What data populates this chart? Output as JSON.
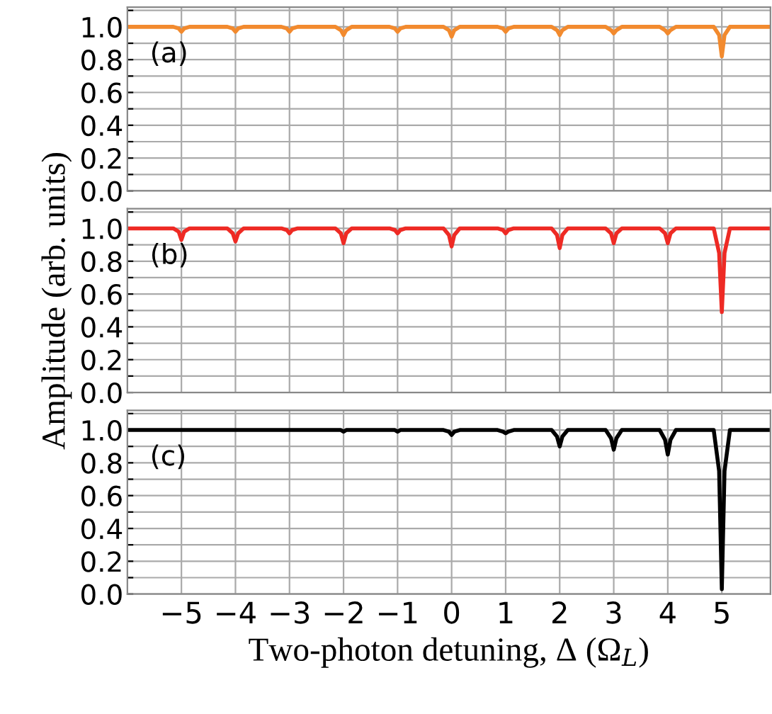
{
  "chart_data": [
    {
      "type": "line",
      "annotations": [
        "(a)"
      ],
      "tick_labels": "y",
      "grid": true,
      "xlim": [
        -6,
        5.9
      ],
      "ylim": [
        0,
        1.12
      ],
      "xticks": [
        {
          "value": -5,
          "label": null
        },
        {
          "value": -4,
          "label": null
        },
        {
          "value": -3,
          "label": null
        },
        {
          "value": -2,
          "label": null
        },
        {
          "value": -1,
          "label": null
        },
        {
          "value": 0,
          "label": null
        },
        {
          "value": 1,
          "label": null
        },
        {
          "value": 2,
          "label": null
        },
        {
          "value": 3,
          "label": null
        },
        {
          "value": 4,
          "label": null
        },
        {
          "value": 5,
          "label": null
        }
      ],
      "yticks": [
        {
          "value": 0,
          "label": "0.0"
        },
        {
          "value": 0.1,
          "label": null
        },
        0.2,
        {
          "value": 0.3,
          "label": null
        },
        0.4,
        {
          "value": 0.5,
          "label": null
        },
        0.6,
        {
          "value": 0.7,
          "label": null
        },
        0.8,
        {
          "value": 0.9,
          "label": null
        },
        {
          "value": 1,
          "label": "1.0"
        },
        {
          "value": 1.1,
          "label": null
        }
      ],
      "x": [
        -6,
        -5.15,
        -5.05,
        -5,
        -4.95,
        -4.85,
        -4.15,
        -4.05,
        -4,
        -3.95,
        -3.85,
        -3.15,
        -3.05,
        -3,
        -2.95,
        -2.85,
        -2.15,
        -2.05,
        -2,
        -1.95,
        -1.85,
        -1.15,
        -1.05,
        -1,
        -0.95,
        -0.85,
        -0.15,
        -0.05,
        0,
        0.05,
        0.15,
        0.85,
        0.95,
        1,
        1.05,
        1.15,
        1.85,
        1.95,
        2,
        2.05,
        2.15,
        2.85,
        2.95,
        3,
        3.05,
        3.15,
        3.85,
        3.95,
        4,
        4.05,
        4.15,
        4.85,
        4.95,
        5,
        5.05,
        5.15,
        5.9
      ],
      "series": [
        {
          "color": "#f28a2e",
          "values": [
            1.0,
            1.0,
            0.99,
            0.97,
            0.99,
            1.0,
            1.0,
            0.99,
            0.97,
            0.99,
            1.0,
            1.0,
            0.99,
            0.97,
            0.99,
            1.0,
            1.0,
            0.98,
            0.95,
            0.98,
            1.0,
            1.0,
            0.99,
            0.97,
            0.99,
            1.0,
            1.0,
            0.98,
            0.94,
            0.98,
            1.0,
            1.0,
            0.99,
            0.97,
            0.99,
            1.0,
            1.0,
            0.98,
            0.95,
            0.98,
            1.0,
            1.0,
            0.98,
            0.96,
            0.98,
            1.0,
            1.0,
            0.98,
            0.96,
            0.98,
            1.0,
            1.0,
            0.95,
            0.82,
            0.95,
            1.0,
            1.0
          ]
        }
      ]
    },
    {
      "type": "line",
      "annotations": [
        "(b)"
      ],
      "ylabel": "Amplitude (arb. units)",
      "tick_labels": "y",
      "grid": true,
      "xlim": [
        -6,
        5.9
      ],
      "ylim": [
        0,
        1.12
      ],
      "xticks": [
        {
          "value": -5,
          "label": null
        },
        {
          "value": -4,
          "label": null
        },
        {
          "value": -3,
          "label": null
        },
        {
          "value": -2,
          "label": null
        },
        {
          "value": -1,
          "label": null
        },
        {
          "value": 0,
          "label": null
        },
        {
          "value": 1,
          "label": null
        },
        {
          "value": 2,
          "label": null
        },
        {
          "value": 3,
          "label": null
        },
        {
          "value": 4,
          "label": null
        },
        {
          "value": 5,
          "label": null
        }
      ],
      "yticks": [
        {
          "value": 0,
          "label": "0.0"
        },
        {
          "value": 0.1,
          "label": null
        },
        0.2,
        {
          "value": 0.3,
          "label": null
        },
        0.4,
        {
          "value": 0.5,
          "label": null
        },
        0.6,
        {
          "value": 0.7,
          "label": null
        },
        0.8,
        {
          "value": 0.9,
          "label": null
        },
        {
          "value": 1,
          "label": "1.0"
        },
        {
          "value": 1.1,
          "label": null
        }
      ],
      "x": [
        -6,
        -5.15,
        -5.05,
        -5,
        -4.95,
        -4.85,
        -4.15,
        -4.05,
        -4,
        -3.95,
        -3.85,
        -3.15,
        -3.05,
        -3,
        -2.95,
        -2.85,
        -2.15,
        -2.05,
        -2,
        -1.95,
        -1.85,
        -1.15,
        -1.05,
        -1,
        -0.95,
        -0.85,
        -0.15,
        -0.05,
        0,
        0.05,
        0.15,
        0.85,
        0.95,
        1,
        1.05,
        1.15,
        1.85,
        1.95,
        2,
        2.05,
        2.15,
        2.85,
        2.95,
        3,
        3.05,
        3.15,
        3.85,
        3.95,
        4,
        4.05,
        4.15,
        4.85,
        4.95,
        5,
        5.05,
        5.15,
        5.9
      ],
      "series": [
        {
          "color": "#ee2a24",
          "values": [
            1.0,
            1.0,
            0.98,
            0.93,
            0.98,
            1.0,
            1.0,
            0.97,
            0.92,
            0.97,
            1.0,
            1.0,
            0.99,
            0.97,
            0.99,
            1.0,
            1.0,
            0.97,
            0.91,
            0.97,
            1.0,
            1.0,
            0.99,
            0.97,
            0.99,
            1.0,
            1.0,
            0.96,
            0.89,
            0.96,
            1.0,
            1.0,
            0.99,
            0.97,
            0.99,
            1.0,
            1.0,
            0.96,
            0.88,
            0.96,
            1.0,
            1.0,
            0.97,
            0.91,
            0.97,
            1.0,
            1.0,
            0.97,
            0.91,
            0.97,
            1.0,
            1.0,
            0.85,
            0.49,
            0.85,
            1.0,
            1.0
          ]
        }
      ]
    },
    {
      "type": "line",
      "annotations": [
        "(c)"
      ],
      "xlabel": "Two-photon detuning, Δ (Ω$_{L}$)",
      "grid": true,
      "xlim": [
        -6,
        5.9
      ],
      "ylim": [
        0,
        1.12
      ],
      "xticks": [
        {
          "value": -5,
          "label": "−5"
        },
        {
          "value": -4,
          "label": "−4"
        },
        {
          "value": -3,
          "label": "−3"
        },
        {
          "value": -2,
          "label": "−2"
        },
        {
          "value": -1,
          "label": "−1"
        },
        0,
        1,
        2,
        3,
        4,
        5
      ],
      "yticks": [
        {
          "value": 0,
          "label": "0.0"
        },
        {
          "value": 0.1,
          "label": null
        },
        0.2,
        {
          "value": 0.3,
          "label": null
        },
        0.4,
        {
          "value": 0.5,
          "label": null
        },
        0.6,
        {
          "value": 0.7,
          "label": null
        },
        0.8,
        {
          "value": 0.9,
          "label": null
        },
        {
          "value": 1,
          "label": "1.0"
        },
        {
          "value": 1.1,
          "label": null
        }
      ],
      "x": [
        -6,
        -5.15,
        -5.05,
        -5,
        -4.95,
        -4.85,
        -4.15,
        -4.05,
        -4,
        -3.95,
        -3.85,
        -3.15,
        -3.05,
        -3,
        -2.95,
        -2.85,
        -2.15,
        -2.05,
        -2,
        -1.95,
        -1.85,
        -1.15,
        -1.05,
        -1,
        -0.95,
        -0.85,
        -0.15,
        -0.05,
        0,
        0.05,
        0.15,
        0.85,
        0.95,
        1,
        1.05,
        1.15,
        1.85,
        1.95,
        2,
        2.05,
        2.15,
        2.85,
        2.95,
        3,
        3.05,
        3.15,
        3.85,
        3.95,
        4,
        4.05,
        4.15,
        4.85,
        4.95,
        5,
        5.05,
        5.15,
        5.9
      ],
      "series": [
        {
          "color": "#000000",
          "values": [
            1.0,
            1.0,
            1.0,
            1.0,
            1.0,
            1.0,
            1.0,
            1.0,
            1.0,
            1.0,
            1.0,
            1.0,
            1.0,
            1.0,
            1.0,
            1.0,
            1.0,
            1.0,
            0.99,
            1.0,
            1.0,
            1.0,
            1.0,
            0.99,
            1.0,
            1.0,
            1.0,
            0.99,
            0.97,
            0.99,
            1.0,
            1.0,
            0.99,
            0.98,
            0.99,
            1.0,
            1.0,
            0.96,
            0.9,
            0.96,
            1.0,
            1.0,
            0.95,
            0.88,
            0.95,
            1.0,
            1.0,
            0.94,
            0.85,
            0.94,
            1.0,
            1.0,
            0.75,
            0.03,
            0.75,
            1.0,
            1.0
          ]
        }
      ]
    }
  ]
}
